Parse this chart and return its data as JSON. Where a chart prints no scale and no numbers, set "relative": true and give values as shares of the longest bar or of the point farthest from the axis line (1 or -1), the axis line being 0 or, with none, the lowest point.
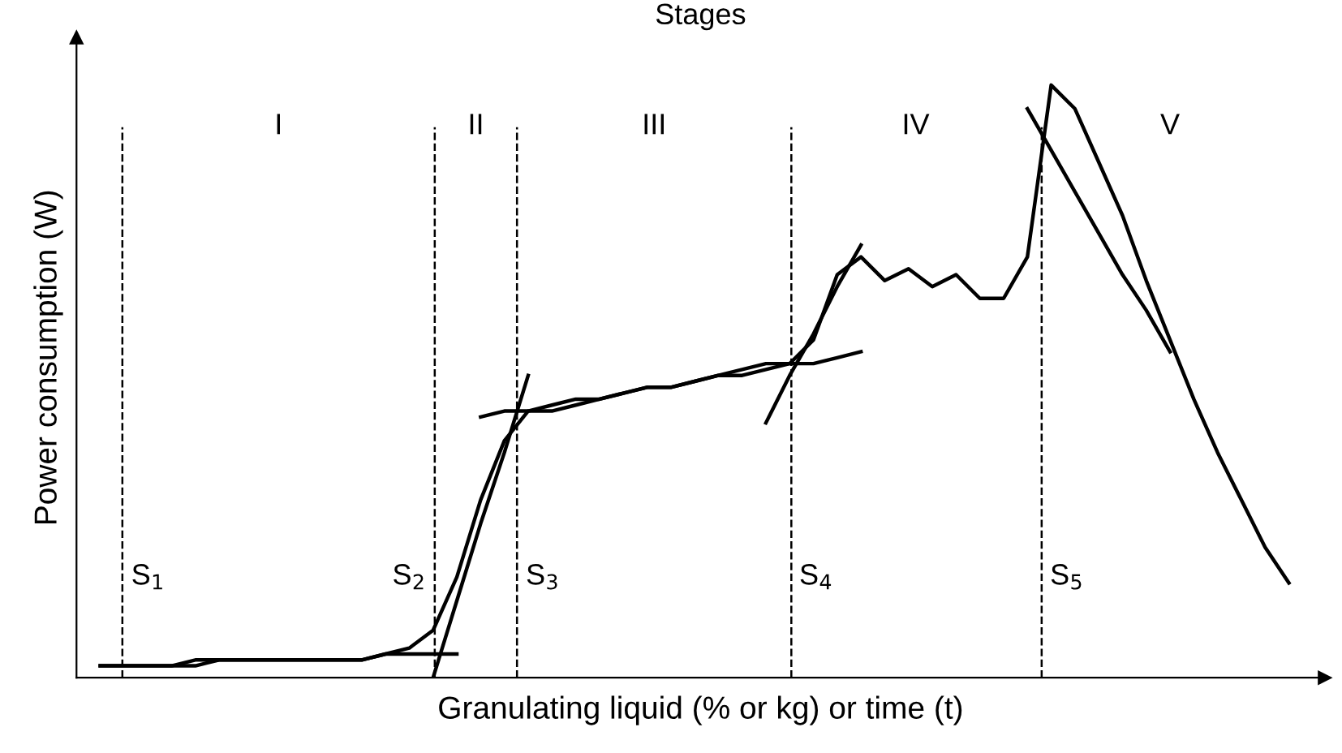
{
  "chart_data": {
    "type": "line",
    "title": "Stages",
    "xlabel": "Granulating liquid (% or kg) or time (t)",
    "ylabel": "Power consumption (W)",
    "relative": true,
    "categories": [
      null,
      null,
      null,
      null,
      null,
      null,
      null,
      null,
      null,
      null,
      null,
      null,
      null,
      null,
      null,
      null,
      null,
      null,
      null,
      null,
      null,
      null,
      null,
      null,
      null,
      null,
      null,
      null,
      null,
      null,
      null,
      null,
      null,
      null,
      null,
      null,
      null,
      null,
      null,
      null,
      null,
      null,
      null,
      null,
      null,
      null,
      null,
      null,
      null,
      null,
      null
    ],
    "series": [
      {
        "color": "#000000",
        "values": [
          0.02,
          0.02,
          0.02,
          0.02,
          0.02,
          0.03,
          0.03,
          0.03,
          0.03,
          0.03,
          0.03,
          0.03,
          0.04,
          0.05,
          0.08,
          0.17,
          0.3,
          0.4,
          0.45,
          0.45,
          0.46,
          0.47,
          0.48,
          0.49,
          0.49,
          0.5,
          0.51,
          0.52,
          0.53,
          0.53,
          0.57,
          0.68,
          0.71,
          0.67,
          0.69,
          0.66,
          0.68,
          0.64,
          0.64,
          0.71,
          1.0,
          0.96,
          0.87,
          0.78,
          0.67,
          0.57,
          0.47,
          0.38,
          0.3,
          0.22,
          0.16
        ]
      },
      {
        "color": "#000000",
        "values": [
          0.02,
          0.02,
          0.02,
          0.02,
          0.03,
          0.03,
          0.03,
          0.03,
          0.03,
          0.03,
          0.03,
          0.03,
          0.04,
          0.04,
          0.04,
          0.04,
          null,
          null,
          null,
          null,
          null,
          null,
          null,
          null,
          null,
          null,
          null,
          null,
          null,
          null,
          null,
          null,
          null,
          null,
          null,
          null,
          null,
          null,
          null,
          null,
          null,
          null,
          null,
          null,
          null,
          null,
          null,
          null,
          null,
          null,
          null
        ]
      },
      {
        "color": "#000000",
        "values": [
          null,
          null,
          null,
          null,
          null,
          null,
          null,
          null,
          null,
          null,
          null,
          null,
          null,
          null,
          0,
          0.13,
          0.26,
          0.38,
          0.51,
          null,
          null,
          null,
          null,
          null,
          null,
          null,
          null,
          null,
          null,
          null,
          null,
          null,
          null,
          null,
          null,
          null,
          null,
          null,
          null,
          null,
          null,
          null,
          null,
          null,
          null,
          null,
          null,
          null,
          null,
          null,
          null
        ]
      },
      {
        "color": "#000000",
        "values": [
          null,
          null,
          null,
          null,
          null,
          null,
          null,
          null,
          null,
          null,
          null,
          null,
          null,
          null,
          null,
          null,
          0.44,
          0.45,
          0.45,
          0.46,
          0.47,
          0.47,
          0.48,
          0.49,
          0.49,
          0.5,
          0.51,
          0.51,
          0.52,
          0.53,
          0.53,
          0.54,
          0.55,
          null,
          null,
          null,
          null,
          null,
          null,
          null,
          null,
          null,
          null,
          null,
          null,
          null,
          null,
          null,
          null,
          null,
          null
        ]
      },
      {
        "color": "#000000",
        "values": [
          null,
          null,
          null,
          null,
          null,
          null,
          null,
          null,
          null,
          null,
          null,
          null,
          null,
          null,
          null,
          null,
          null,
          null,
          null,
          null,
          null,
          null,
          null,
          null,
          null,
          null,
          null,
          null,
          0.43,
          0.51,
          0.58,
          0.66,
          0.73,
          null,
          null,
          null,
          null,
          null,
          null,
          null,
          null,
          null,
          null,
          null,
          null,
          null,
          null,
          null,
          null,
          null,
          null
        ]
      },
      {
        "color": "#000000",
        "values": [
          null,
          null,
          null,
          null,
          null,
          null,
          null,
          null,
          null,
          null,
          null,
          null,
          null,
          null,
          null,
          null,
          null,
          null,
          null,
          null,
          null,
          null,
          null,
          null,
          null,
          null,
          null,
          null,
          null,
          null,
          null,
          null,
          null,
          null,
          null,
          null,
          null,
          null,
          null,
          0.96,
          0.89,
          0.82,
          0.75,
          0.68,
          0.62,
          0.55,
          null,
          null,
          null,
          null,
          null
        ]
      }
    ],
    "annotations": [
      "I",
      "II",
      "III",
      "IV",
      "V",
      "S$_{1}$",
      "S$_{2}$",
      "S$_{3}$",
      "S$_{4}$",
      "S$_{5}$"
    ],
    "grid": "x",
    "legend": false,
    "marker": "none",
    "line_style": "solid"
  }
}
